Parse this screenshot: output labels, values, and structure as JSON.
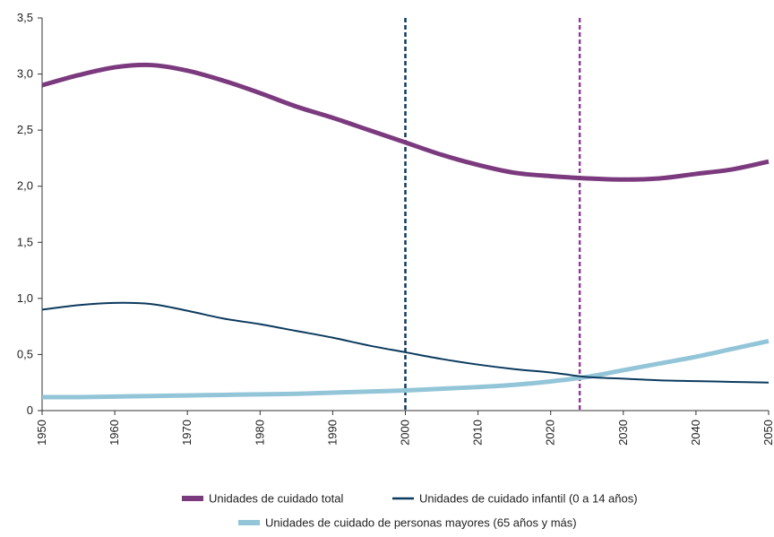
{
  "chart_data": {
    "type": "line",
    "title": "",
    "xlabel": "",
    "ylabel": "",
    "x": [
      1950,
      1955,
      1960,
      1965,
      1970,
      1975,
      1980,
      1985,
      1990,
      1995,
      2000,
      2005,
      2010,
      2015,
      2020,
      2025,
      2030,
      2035,
      2040,
      2045,
      2050
    ],
    "xlim": [
      1950,
      2050
    ],
    "ylim": [
      0,
      3.5
    ],
    "xticks": [
      1950,
      1960,
      1970,
      1980,
      1990,
      2000,
      2010,
      2020,
      2030,
      2040,
      2050
    ],
    "xtick_labels": [
      "1950",
      "1960",
      "1970",
      "1980",
      "1990",
      "2000",
      "2010",
      "2020",
      "2030",
      "2040",
      "2050"
    ],
    "yticks": [
      0,
      0.5,
      1.0,
      1.5,
      2.0,
      2.5,
      3.0,
      3.5
    ],
    "ytick_labels": [
      "0",
      "0,5",
      "1,0",
      "1,5",
      "2,0",
      "2,5",
      "3,0",
      "3,5"
    ],
    "grid": false,
    "legend_position": "bottom",
    "series": [
      {
        "name": "Unidades de cuidado total",
        "color": "#7b3a7e",
        "style": "thick",
        "values": [
          2.9,
          2.99,
          3.06,
          3.08,
          3.03,
          2.94,
          2.83,
          2.71,
          2.61,
          2.5,
          2.39,
          2.28,
          2.19,
          2.12,
          2.09,
          2.07,
          2.06,
          2.07,
          2.11,
          2.15,
          2.22
        ]
      },
      {
        "name": "Unidades de cuidado infantil (0 a 14 años)",
        "color": "#0b3a5e",
        "style": "thin",
        "values": [
          0.9,
          0.94,
          0.96,
          0.95,
          0.89,
          0.82,
          0.77,
          0.71,
          0.65,
          0.58,
          0.52,
          0.46,
          0.41,
          0.37,
          0.34,
          0.3,
          0.285,
          0.27,
          0.263,
          0.256,
          0.25
        ]
      },
      {
        "name": "Unidades de cuidado de personas mayores (65 años y más)",
        "color": "#93c5d8",
        "style": "thick",
        "values": [
          0.12,
          0.12,
          0.125,
          0.13,
          0.135,
          0.14,
          0.145,
          0.15,
          0.16,
          0.17,
          0.18,
          0.195,
          0.21,
          0.23,
          0.26,
          0.3,
          0.36,
          0.42,
          0.48,
          0.55,
          0.62
        ]
      }
    ],
    "reference_lines": [
      {
        "x": 2000,
        "color": "#0b3a5e",
        "style": "dashed"
      },
      {
        "x": 2024,
        "color": "#8e3e96",
        "style": "dashed"
      }
    ]
  }
}
